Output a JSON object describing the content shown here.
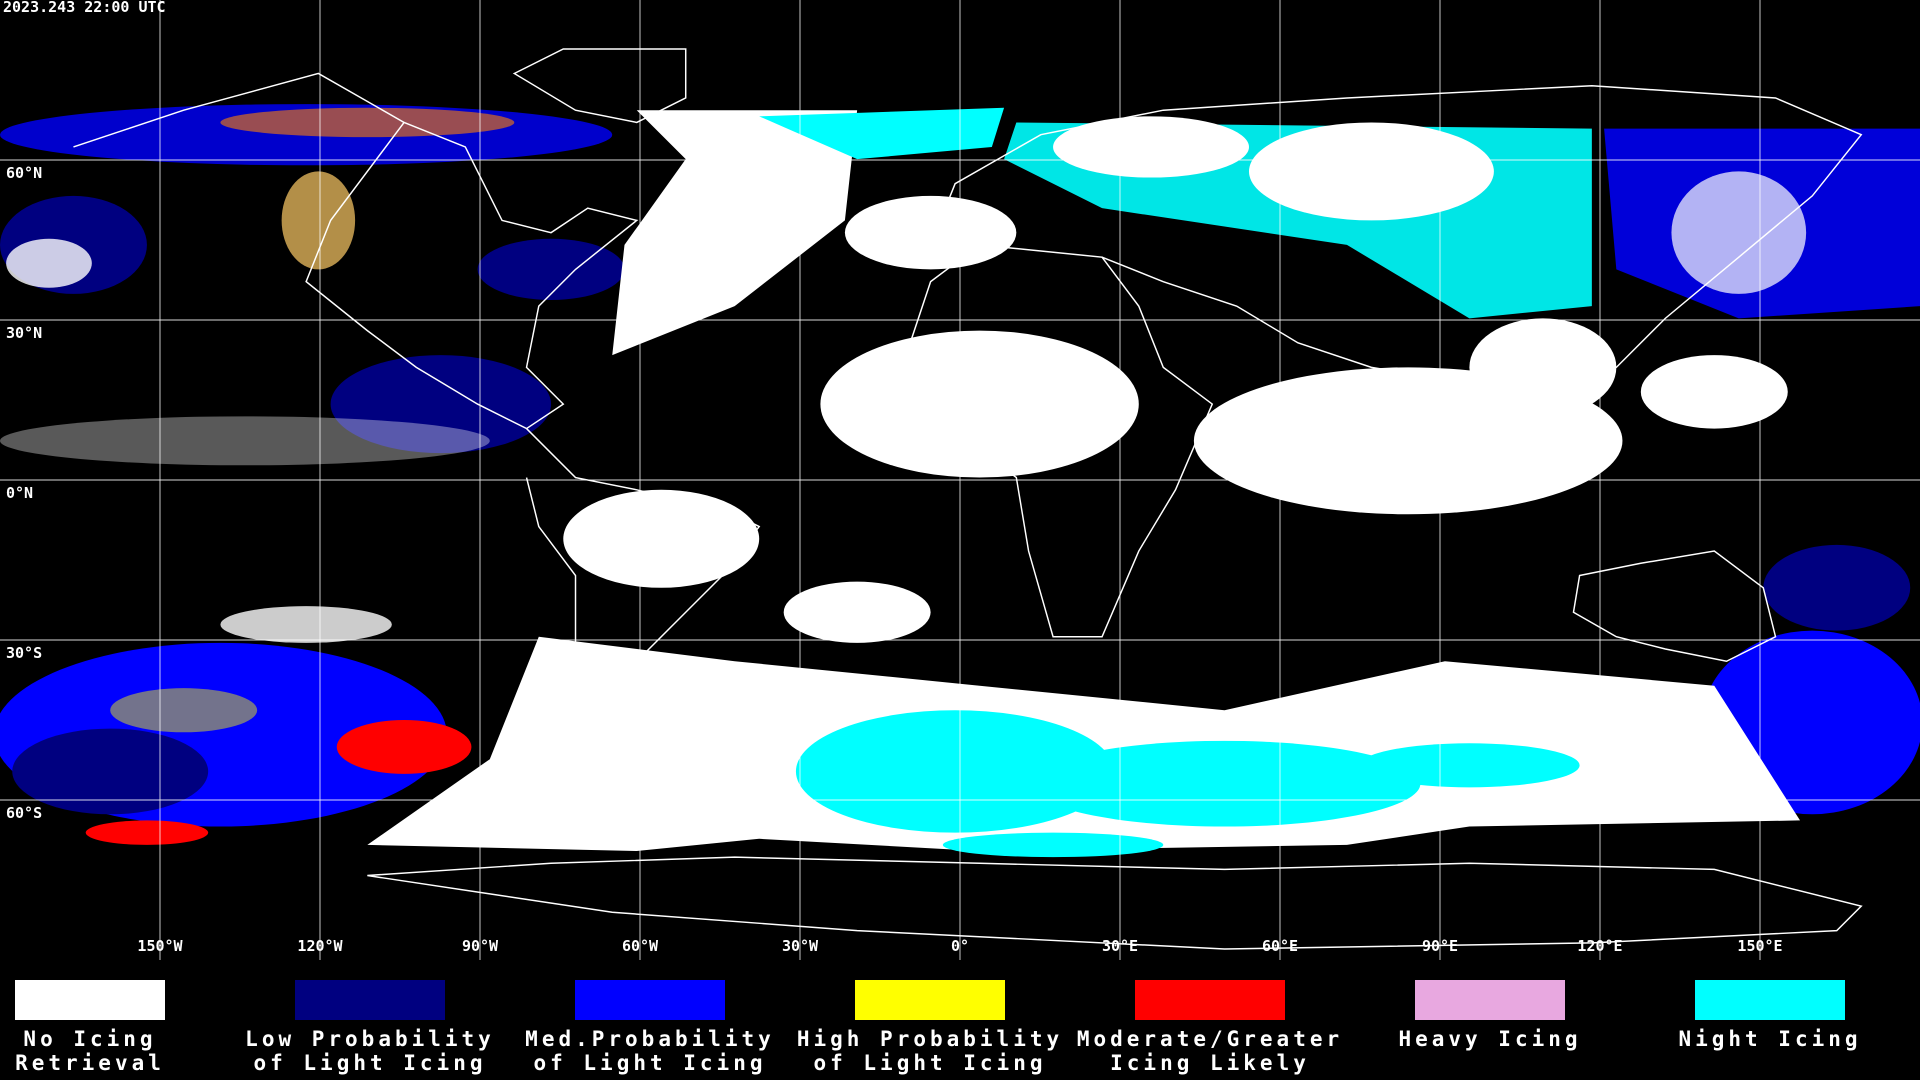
{
  "header": {
    "timestamp": "2023.243 22:00 UTC"
  },
  "map": {
    "lat_labels": [
      "60°N",
      "30°N",
      "0°N",
      "30°S",
      "60°S"
    ],
    "lon_labels": [
      "150°W",
      "120°W",
      "90°W",
      "60°W",
      "30°W",
      "0°",
      "30°E",
      "60°E",
      "90°E",
      "120°E",
      "150°E"
    ]
  },
  "legend": [
    {
      "lines": [
        "No Icing",
        "Retrieval"
      ],
      "color": "#ffffff"
    },
    {
      "lines": [
        "Low Probability",
        "of Light Icing"
      ],
      "color": "#000080"
    },
    {
      "lines": [
        "Med.Probability",
        "of Light Icing"
      ],
      "color": "#0000ff"
    },
    {
      "lines": [
        "High Probability",
        "of Light Icing"
      ],
      "color": "#ffff00"
    },
    {
      "lines": [
        "Moderate/Greater",
        "Icing Likely"
      ],
      "color": "#ff0000"
    },
    {
      "lines": [
        "Heavy Icing"
      ],
      "color": "#e8a8e0"
    },
    {
      "lines": [
        "Night Icing"
      ],
      "color": "#00ffff"
    }
  ]
}
